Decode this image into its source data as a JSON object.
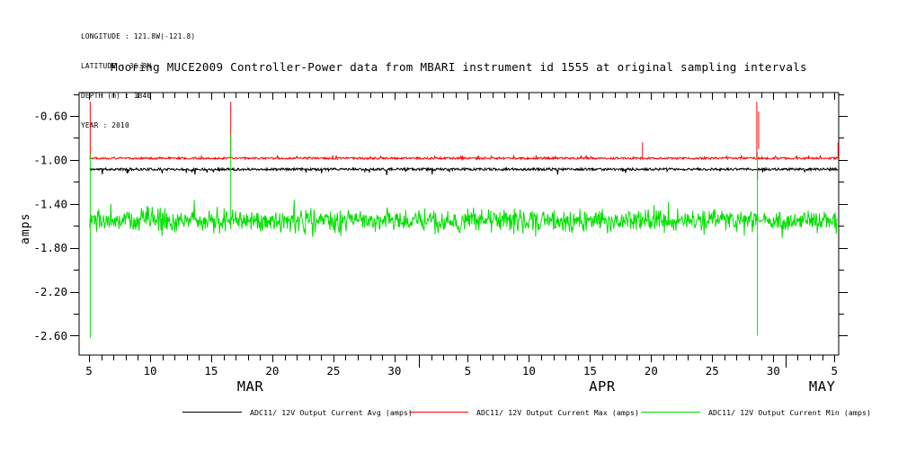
{
  "metadata": {
    "longitude_line": "LONGITUDE : 121.8W(-121.8)",
    "latitude_line": "LATITUDE : 36.8N",
    "depth_line": "DEPTH (m) : 1840",
    "year_line": "YEAR : 2010"
  },
  "chart_data": {
    "type": "line",
    "title": "Mooring MUCE2009 Controller-Power data from MBARI instrument id 1555 at original sampling intervals",
    "ylabel": "amps",
    "background": "#ffffff",
    "axis_color": "#000000",
    "x_axis": {
      "unit": "day of month, Mar-May 2010",
      "start": 4.19,
      "end": 66.35,
      "minor_tick_step_days": 1,
      "major_ticks": [
        {
          "day": 5,
          "label": "5"
        },
        {
          "day": 10,
          "label": "10"
        },
        {
          "day": 15,
          "label": "15"
        },
        {
          "day": 20,
          "label": "20"
        },
        {
          "day": 25,
          "label": "25"
        },
        {
          "day": 30,
          "label": "30"
        },
        {
          "day": 36,
          "label": "5"
        },
        {
          "day": 41,
          "label": "10"
        },
        {
          "day": 46,
          "label": "15"
        },
        {
          "day": 51,
          "label": "20"
        },
        {
          "day": 56,
          "label": "25"
        },
        {
          "day": 61,
          "label": "30"
        },
        {
          "day": 66,
          "label": "5"
        }
      ],
      "month_boundary_days": [
        32,
        62
      ],
      "month_labels": [
        {
          "day": 18.2,
          "label": "MAR"
        },
        {
          "day": 47.0,
          "label": "APR"
        },
        {
          "day": 65.0,
          "label": "MAY"
        }
      ]
    },
    "y_axis": {
      "min": -2.776,
      "max": -0.387,
      "major_ticks": [
        {
          "value": -0.6,
          "label": "-0.60"
        },
        {
          "value": -1.0,
          "label": "-1.00"
        },
        {
          "value": -1.4,
          "label": "-1.40"
        },
        {
          "value": -1.8,
          "label": "-1.80"
        },
        {
          "value": -2.2,
          "label": "-2.20"
        },
        {
          "value": -2.6,
          "label": "-2.60"
        }
      ],
      "minor_ticks": [
        -0.4,
        -0.8,
        -1.2,
        -1.6,
        -2.0,
        -2.4
      ]
    },
    "series": [
      {
        "name": "ADC11/ 12V Output Current Avg (amps)",
        "color": "#000000",
        "data_start_day": 5.05,
        "data_end_day": 66.3,
        "baseline": -1.085,
        "noise_amplitude": 0.022,
        "jitter_prob": 0.04,
        "jitter_down": 0.04,
        "jitter_up": 0.0,
        "seed": 11,
        "spikes": [
          {
            "day": 59.7,
            "from": -1.09,
            "to": -1.18
          }
        ]
      },
      {
        "name": "ADC11/ 12V Output Current Max (amps)",
        "color": "#ff0000",
        "data_start_day": 5.05,
        "data_end_day": 66.35,
        "baseline": -0.985,
        "noise_amplitude": 0.018,
        "jitter_prob": 0.05,
        "jitter_down": 0.0,
        "jitter_up": 0.02,
        "seed": 22,
        "spikes": [
          {
            "day": 5.1,
            "from": -0.47,
            "to": -0.985
          },
          {
            "day": 16.6,
            "from": -0.47,
            "to": -0.985
          },
          {
            "day": 50.3,
            "from": -0.84,
            "to": -0.985
          },
          {
            "day": 59.65,
            "from": -0.47,
            "to": -0.985
          },
          {
            "day": 59.8,
            "from": -0.56,
            "to": -0.9
          },
          {
            "day": 66.3,
            "from": -0.84,
            "to": -0.985
          }
        ]
      },
      {
        "name": "ADC11/ 12V Output Current Min (amps)",
        "color": "#00e000",
        "data_start_day": 5.05,
        "data_end_day": 66.2,
        "baseline": -1.555,
        "noise_amplitude": 0.3,
        "gaussian": true,
        "jitter_prob": 0.05,
        "jitter_down": 0.09,
        "jitter_up": 0.09,
        "seed": 33,
        "quiet_window": {
          "from_day": 59.75,
          "to_day": 60.15
        },
        "spikes": [
          {
            "day": 5.1,
            "from": -0.95,
            "to": -2.62
          },
          {
            "day": 16.6,
            "from": -0.77,
            "to": -1.63
          },
          {
            "day": 59.7,
            "from": -0.93,
            "to": -2.6
          }
        ]
      }
    ]
  }
}
